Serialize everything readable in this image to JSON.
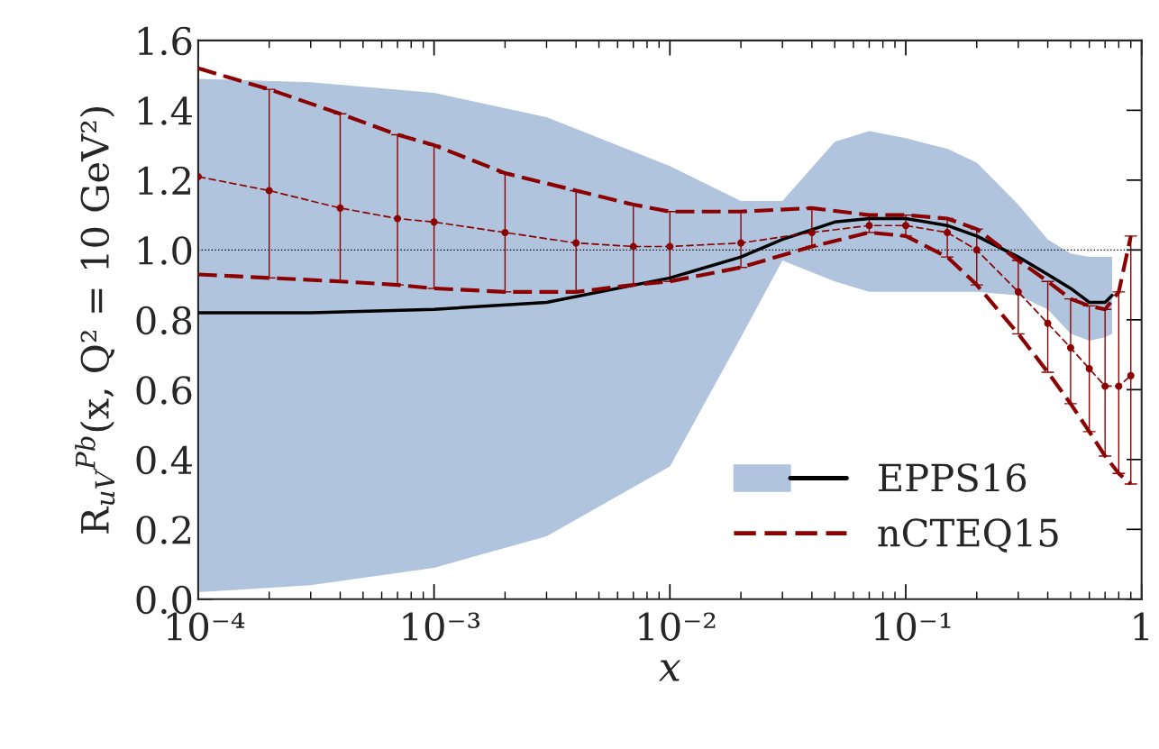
{
  "chart_data": {
    "type": "line",
    "xlabel": "x",
    "ylabel": "R$_{uV}$$^{Pb}$(x, Q² = 10 GeV²)",
    "log": "x",
    "grid": false,
    "legend": "bottom right",
    "xlim": [
      0.0001,
      1
    ],
    "ylim": [
      0,
      1.6
    ],
    "xticks": [
      {
        "value": 0.0001,
        "label": "10⁻⁴"
      },
      {
        "value": 0.001,
        "label": "10⁻³"
      },
      {
        "value": 0.01,
        "label": "10⁻²"
      },
      {
        "value": 0.1,
        "label": "10⁻¹"
      },
      {
        "value": 1,
        "label": "1"
      }
    ],
    "yticks": [
      {
        "value": 0,
        "label": "0.0"
      },
      {
        "value": 0.2,
        "label": "0.2"
      },
      {
        "value": 0.4,
        "label": "0.4"
      },
      {
        "value": 0.6,
        "label": "0.6"
      },
      {
        "value": 0.8,
        "label": "0.8"
      },
      {
        "value": 1,
        "label": "1.0"
      },
      {
        "value": 1.2,
        "label": "1.2"
      },
      {
        "value": 1.4,
        "label": "1.4"
      },
      {
        "value": 1.6,
        "label": "1.6"
      }
    ],
    "ref_lines": [
      {
        "axis": "y",
        "value": 1,
        "color": "#000000",
        "line_style": "dotted"
      }
    ],
    "series": [
      {
        "name": "EPPS16",
        "color": "#000000",
        "line_style": "solid",
        "x": [
          0.0001,
          0.0003,
          0.001,
          0.003,
          0.01,
          0.02,
          0.03,
          0.05,
          0.07,
          0.1,
          0.15,
          0.2,
          0.3,
          0.4,
          0.5,
          0.6,
          0.7,
          0.75
        ],
        "values": [
          0.82,
          0.82,
          0.83,
          0.85,
          0.92,
          0.98,
          1.03,
          1.08,
          1.09,
          1.09,
          1.07,
          1.04,
          0.98,
          0.93,
          0.89,
          0.85,
          0.85,
          0.87
        ],
        "upper": [
          1.49,
          1.48,
          1.45,
          1.38,
          1.24,
          1.14,
          1.14,
          1.31,
          1.34,
          1.32,
          1.29,
          1.25,
          1.13,
          1.03,
          0.99,
          0.98,
          0.98,
          0.98
        ],
        "lower": [
          0.02,
          0.04,
          0.09,
          0.18,
          0.38,
          0.75,
          0.97,
          0.91,
          0.88,
          0.88,
          0.88,
          0.88,
          0.87,
          0.83,
          0.76,
          0.74,
          0.75,
          0.76
        ]
      },
      {
        "name": "nCTEQ15",
        "color": "#8b0000",
        "line_style": "dashed",
        "marker": "circle",
        "x": [
          0.0001,
          0.0002,
          0.0004,
          0.0007,
          0.001,
          0.002,
          0.004,
          0.007,
          0.01,
          0.02,
          0.04,
          0.07,
          0.1,
          0.15,
          0.2,
          0.3,
          0.4,
          0.5,
          0.6,
          0.7,
          0.8,
          0.9
        ],
        "values": [
          1.21,
          1.17,
          1.12,
          1.09,
          1.08,
          1.05,
          1.02,
          1.01,
          1.01,
          1.02,
          1.05,
          1.07,
          1.07,
          1.05,
          1.0,
          0.88,
          0.79,
          0.72,
          0.66,
          0.61,
          0.61,
          0.64
        ],
        "errors": [
          [
            0.93,
            1.52
          ],
          [
            0.92,
            1.46
          ],
          [
            0.91,
            1.39
          ],
          [
            0.9,
            1.33
          ],
          [
            0.89,
            1.3
          ],
          [
            0.88,
            1.22
          ],
          [
            0.88,
            1.17
          ],
          [
            0.9,
            1.13
          ],
          [
            0.91,
            1.11
          ],
          [
            0.95,
            1.11
          ],
          [
            1.01,
            1.12
          ],
          [
            1.05,
            1.1
          ],
          [
            1.04,
            1.1
          ],
          [
            0.98,
            1.09
          ],
          [
            0.9,
            1.06
          ],
          [
            0.76,
            0.97
          ],
          [
            0.65,
            0.91
          ],
          [
            0.56,
            0.86
          ],
          [
            0.48,
            0.84
          ],
          [
            0.41,
            0.83
          ],
          [
            0.36,
            0.88
          ],
          [
            0.33,
            1.04
          ]
        ]
      },
      {
        "color": "#8b0000",
        "line_style": "dashed",
        "x": [
          0.0001,
          0.0002,
          0.0004,
          0.0007,
          0.001,
          0.002,
          0.004,
          0.007,
          0.01,
          0.02,
          0.04,
          0.07,
          0.1,
          0.15,
          0.2,
          0.3,
          0.4,
          0.5,
          0.6,
          0.7,
          0.8,
          0.9
        ],
        "values": [
          1.52,
          1.46,
          1.39,
          1.33,
          1.3,
          1.22,
          1.17,
          1.13,
          1.11,
          1.11,
          1.12,
          1.1,
          1.1,
          1.09,
          1.06,
          0.97,
          0.91,
          0.86,
          0.84,
          0.83,
          0.88,
          1.04
        ]
      },
      {
        "color": "#8b0000",
        "line_style": "dashed",
        "x": [
          0.0001,
          0.0002,
          0.0004,
          0.0007,
          0.001,
          0.002,
          0.004,
          0.007,
          0.01,
          0.02,
          0.04,
          0.07,
          0.1,
          0.15,
          0.2,
          0.3,
          0.4,
          0.5,
          0.6,
          0.7,
          0.8,
          0.9
        ],
        "values": [
          0.93,
          0.92,
          0.91,
          0.9,
          0.89,
          0.88,
          0.88,
          0.9,
          0.91,
          0.95,
          1.01,
          1.05,
          1.04,
          0.98,
          0.9,
          0.76,
          0.65,
          0.56,
          0.48,
          0.41,
          0.36,
          0.33
        ]
      }
    ]
  }
}
